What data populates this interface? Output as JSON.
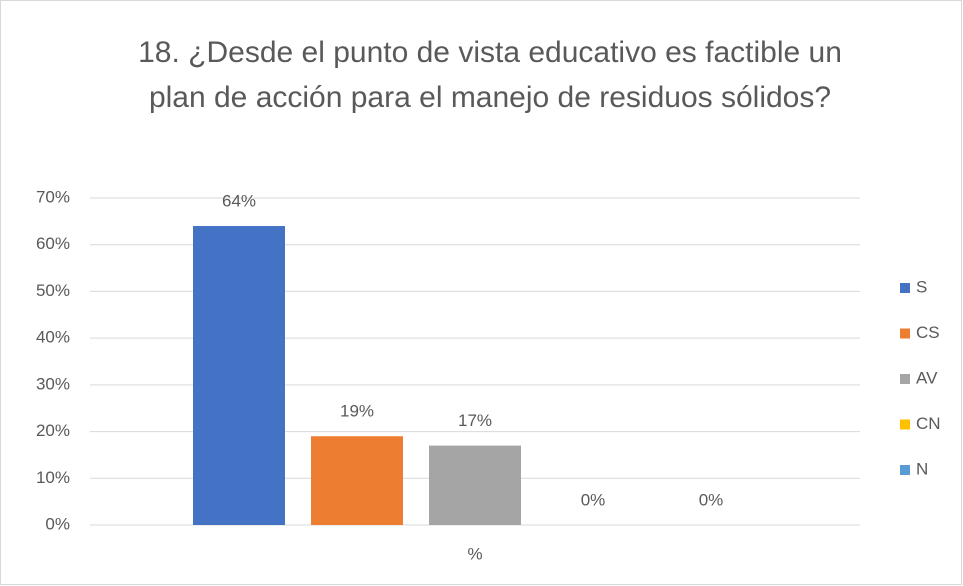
{
  "chart_data": {
    "type": "bar",
    "title": "18. ¿Desde el punto de vista educativo es factible un plan de acción para el manejo de residuos sólidos?",
    "categories": [
      "%"
    ],
    "series": [
      {
        "name": "S",
        "color": "#4472c4",
        "values": [
          64
        ],
        "value_labels": [
          "64%"
        ]
      },
      {
        "name": "CS",
        "color": "#ed7d31",
        "values": [
          19
        ],
        "value_labels": [
          "19%"
        ]
      },
      {
        "name": "AV",
        "color": "#a5a5a5",
        "values": [
          17
        ],
        "value_labels": [
          "17%"
        ]
      },
      {
        "name": "CN",
        "color": "#ffc000",
        "values": [
          0
        ],
        "value_labels": [
          "0%"
        ]
      },
      {
        "name": "N",
        "color": "#5b9bd5",
        "values": [
          0
        ],
        "value_labels": [
          "0%"
        ]
      }
    ],
    "ylim": [
      0,
      70
    ],
    "yticks": [
      {
        "value": 0,
        "label": "0%"
      },
      {
        "value": 10,
        "label": "10%"
      },
      {
        "value": 20,
        "label": "20%"
      },
      {
        "value": 30,
        "label": "30%"
      },
      {
        "value": 40,
        "label": "40%"
      },
      {
        "value": 50,
        "label": "50%"
      },
      {
        "value": 60,
        "label": "60%"
      },
      {
        "value": 70,
        "label": "70%"
      }
    ],
    "grid": true,
    "legend": "right"
  }
}
